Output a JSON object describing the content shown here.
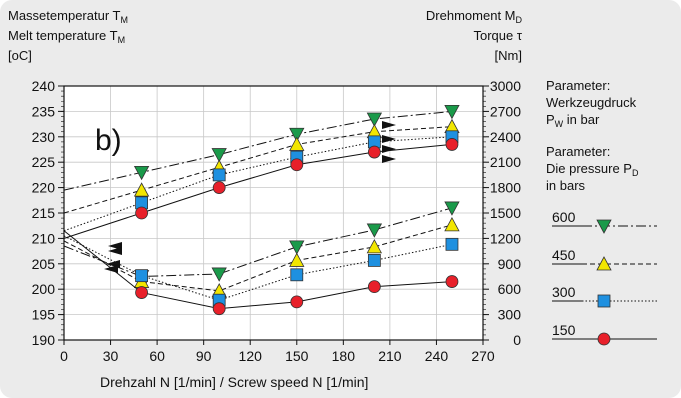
{
  "chart_data": {
    "type": "line",
    "panel_label": "b)",
    "left_axis": {
      "label_de": "Massetemperatur T",
      "label_de_sub": "M",
      "label_en": "Melt temperature T",
      "label_en_sub": "M",
      "unit": "[oC]",
      "ylim": [
        190,
        240
      ],
      "ticks": [
        "240",
        "235",
        "230",
        "225",
        "220",
        "215",
        "210",
        "205",
        "200",
        "195",
        "190"
      ]
    },
    "right_axis": {
      "label_de": "Drehmoment M",
      "label_de_sub": "D",
      "label_en": "Torque τ",
      "unit": "[Nm]",
      "ylim": [
        0,
        3000
      ],
      "ticks": [
        "3000",
        "2700",
        "2400",
        "2100",
        "1800",
        "1500",
        "1200",
        "900",
        "600",
        "300",
        "0"
      ]
    },
    "x_axis": {
      "label": "Drehzahl N [1/min] / Screw speed N [1/min]",
      "xlim": [
        0,
        270
      ],
      "ticks": [
        "0",
        "30",
        "60",
        "90",
        "120",
        "150",
        "180",
        "210",
        "240",
        "270"
      ]
    },
    "x": [
      50,
      100,
      150,
      200,
      250
    ],
    "series": [
      {
        "name": "600",
        "marker": "triangle-down",
        "color": "#1a9a4a",
        "dash": "10,3,2,3",
        "temperature": [
          223,
          226.5,
          230.5,
          233.5,
          235
        ],
        "torque": [
          750,
          780,
          1100,
          1300,
          1560
        ]
      },
      {
        "name": "450",
        "marker": "triangle-up",
        "color": "#f2e600",
        "dash": "5,3",
        "temperature": [
          219.5,
          224,
          228.5,
          231,
          232
        ],
        "torque": [
          690,
          580,
          940,
          1100,
          1360
        ]
      },
      {
        "name": "300",
        "marker": "square",
        "color": "#1e90e0",
        "dash": "1.5,2",
        "temperature": [
          217,
          222.5,
          226,
          229,
          230
        ],
        "torque": [
          760,
          470,
          770,
          940,
          1130
        ]
      },
      {
        "name": "150",
        "marker": "circle",
        "color": "#e8202a",
        "dash": "",
        "temperature": [
          215,
          220,
          224.5,
          227,
          228.5
        ],
        "torque": [
          560,
          370,
          450,
          630,
          690
        ]
      }
    ],
    "legend": {
      "title_de": "Parameter:",
      "line1_de": "Werkzeugdruck",
      "line2_de": "P",
      "line2_de_sub": "W",
      "line2_de_tail": " in bar",
      "title_en": "Parameter:",
      "line1_en": "Die pressure P",
      "line1_en_sub": "D",
      "line2_en": "in bars",
      "placement": "right"
    },
    "grid": true
  }
}
